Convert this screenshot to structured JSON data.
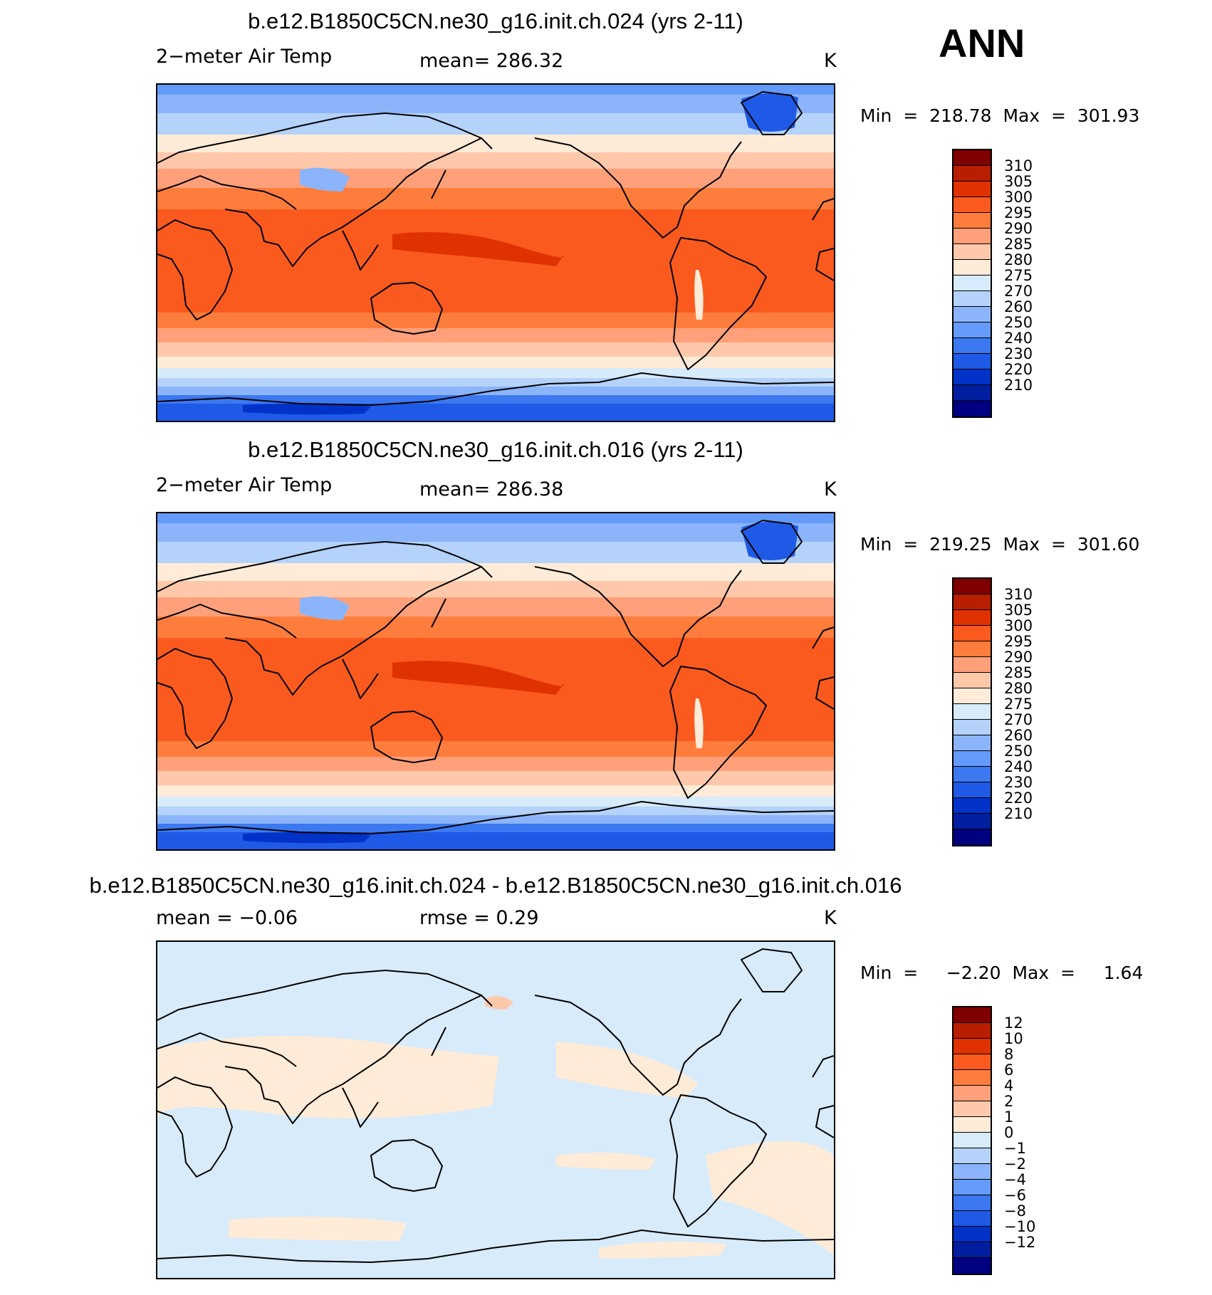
{
  "season": "ANN",
  "panels": [
    {
      "title": "b.e12.B1850C5CN.ne30_g16.init.ch.024 (yrs 2-11)",
      "left_label": "2−meter Air Temp",
      "center_label": "mean=  286.32",
      "units": "K",
      "minmax": "Min  =  218.78  Max  =  301.93",
      "field_type": "abs"
    },
    {
      "title": "b.e12.B1850C5CN.ne30_g16.init.ch.016 (yrs 2-11)",
      "left_label": "2−meter Air Temp",
      "center_label": "mean=  286.38",
      "units": "K",
      "minmax": "Min  =  219.25  Max  =  301.60",
      "field_type": "abs2"
    },
    {
      "title": "b.e12.B1850C5CN.ne30_g16.init.ch.024 - b.e12.B1850C5CN.ne30_g16.init.ch.016",
      "left_label": "mean  =     −0.06",
      "center_label": "rmse  =     0.29",
      "units": "K",
      "minmax": "Min  =     −2.20  Max  =     1.64",
      "field_type": "diff"
    }
  ],
  "colors": [
    "#800000",
    "#b81e00",
    "#e03200",
    "#fa5a1e",
    "#ff7d3c",
    "#ffa07a",
    "#ffc8aa",
    "#ffebd7",
    "#d7ebfa",
    "#b4d2fa",
    "#8cb4fa",
    "#649bfa",
    "#3c78f0",
    "#1e5ae6",
    "#0032c8",
    "#001ea0",
    "#000080"
  ],
  "chart_data": [
    {
      "type": "heatmap",
      "title": "b.e12.B1850C5CN.ne30_g16.init.ch.024 (yrs 2-11)",
      "variable": "2-meter Air Temp",
      "units": "K",
      "mean": 286.32,
      "min": 218.78,
      "max": 301.93,
      "colorbar_levels": [
        "310",
        "305",
        "300",
        "295",
        "290",
        "285",
        "280",
        "275",
        "270",
        "260",
        "250",
        "240",
        "230",
        "220",
        "210"
      ]
    },
    {
      "type": "heatmap",
      "title": "b.e12.B1850C5CN.ne30_g16.init.ch.016 (yrs 2-11)",
      "variable": "2-meter Air Temp",
      "units": "K",
      "mean": 286.38,
      "min": 219.25,
      "max": 301.6,
      "colorbar_levels": [
        "310",
        "305",
        "300",
        "295",
        "290",
        "285",
        "280",
        "275",
        "270",
        "260",
        "250",
        "240",
        "230",
        "220",
        "210"
      ]
    },
    {
      "type": "heatmap",
      "title": "b.e12.B1850C5CN.ne30_g16.init.ch.024 - b.e12.B1850C5CN.ne30_g16.init.ch.016",
      "units": "K",
      "mean": -0.06,
      "rmse": 0.29,
      "min": -2.2,
      "max": 1.64,
      "colorbar_levels": [
        "12",
        "10",
        "8",
        "6",
        "4",
        "2",
        "1",
        "0",
        "−1",
        "−2",
        "−4",
        "−6",
        "−8",
        "−10",
        "−12"
      ]
    }
  ]
}
